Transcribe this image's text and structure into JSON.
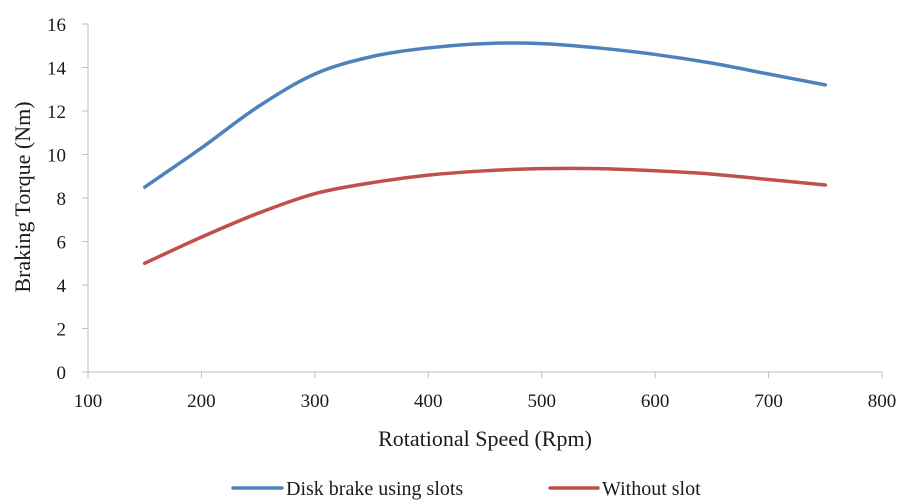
{
  "chart_data": {
    "type": "line",
    "title": "",
    "xlabel": "Rotational Speed (Rpm)",
    "ylabel": "Braking Torque (Nm)",
    "xlim": [
      100,
      800
    ],
    "ylim": [
      0,
      16
    ],
    "xticks": [
      100,
      200,
      300,
      400,
      500,
      600,
      700,
      800
    ],
    "yticks": [
      0,
      2,
      4,
      6,
      8,
      10,
      12,
      14,
      16
    ],
    "grid": false,
    "legend_position": "bottom",
    "smooth": true,
    "series": [
      {
        "name": "Disk brake using slots",
        "color": "#4f81bd",
        "x": [
          150,
          200,
          250,
          300,
          350,
          400,
          450,
          500,
          550,
          600,
          650,
          700,
          750
        ],
        "y": [
          8.5,
          10.3,
          12.2,
          13.7,
          14.5,
          14.9,
          15.1,
          15.1,
          14.9,
          14.6,
          14.2,
          13.7,
          13.2
        ]
      },
      {
        "name": "Without slot",
        "color": "#c0504d",
        "x": [
          150,
          200,
          250,
          300,
          350,
          400,
          450,
          500,
          550,
          600,
          650,
          700,
          750
        ],
        "y": [
          5.0,
          6.2,
          7.3,
          8.2,
          8.7,
          9.05,
          9.25,
          9.35,
          9.35,
          9.25,
          9.1,
          8.85,
          8.6
        ]
      }
    ]
  }
}
